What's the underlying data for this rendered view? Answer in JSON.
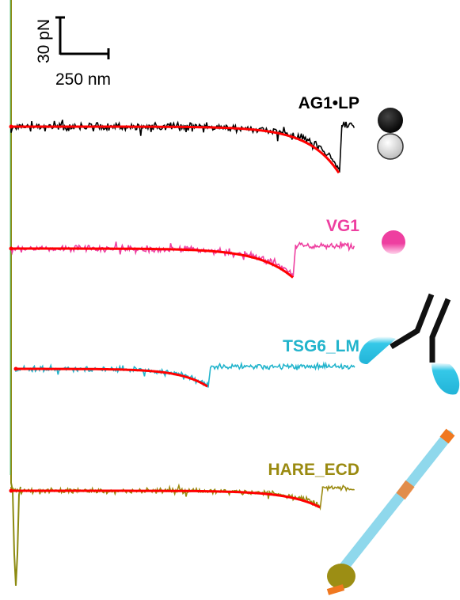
{
  "chart_data": {
    "type": "line",
    "title": "",
    "xlabel": "",
    "ylabel": "",
    "grid": false,
    "legend": "labels at right end of each trace",
    "scale_bar": {
      "force_label": "30 pN",
      "force_value_pN": 30,
      "distance_label": "250 nm",
      "distance_value_nm": 250
    },
    "series": [
      {
        "name": "AG1•LP",
        "color": "#000000",
        "fit_color": "#ff0000",
        "rupture_distance_nm": 1700,
        "peak_force_pN": -37,
        "end_distance_nm": 1780,
        "noise_pN": 2.2,
        "fit_decay_nm": 150,
        "fit_amplitude_pN": 34
      },
      {
        "name": "VG1",
        "color": "#ee3fa0",
        "fit_color": "#ff0000",
        "rupture_distance_nm": 1460,
        "peak_force_pN": -23,
        "end_distance_nm": 1780,
        "noise_pN": 1.9,
        "fit_decay_nm": 170,
        "fit_amplitude_pN": 21
      },
      {
        "name": "TSG6_LM",
        "color": "#22b4cc",
        "fit_color": "#ff0000",
        "rupture_distance_nm": 1020,
        "peak_force_pN": -15,
        "end_distance_nm": 1780,
        "noise_pN": 1.6,
        "fit_decay_nm": 140,
        "fit_amplitude_pN": 13
      },
      {
        "name": "HARE_ECD",
        "color": "#9a8a10",
        "fit_color": "#ff0000",
        "rupture_distance_nm": 1600,
        "peak_force_pN": -14,
        "end_distance_nm": 1780,
        "noise_pN": 1.5,
        "fit_decay_nm": 160,
        "fit_amplitude_pN": 12
      }
    ]
  },
  "icons": {
    "ag1lp": "black-and-white-spheres",
    "vg1": "pink-sphere",
    "tsg6_lm": "antibody-y-with-cyan-domains",
    "hare_ecd": "cyan-rod-with-orange-bands-and-olive-head"
  }
}
